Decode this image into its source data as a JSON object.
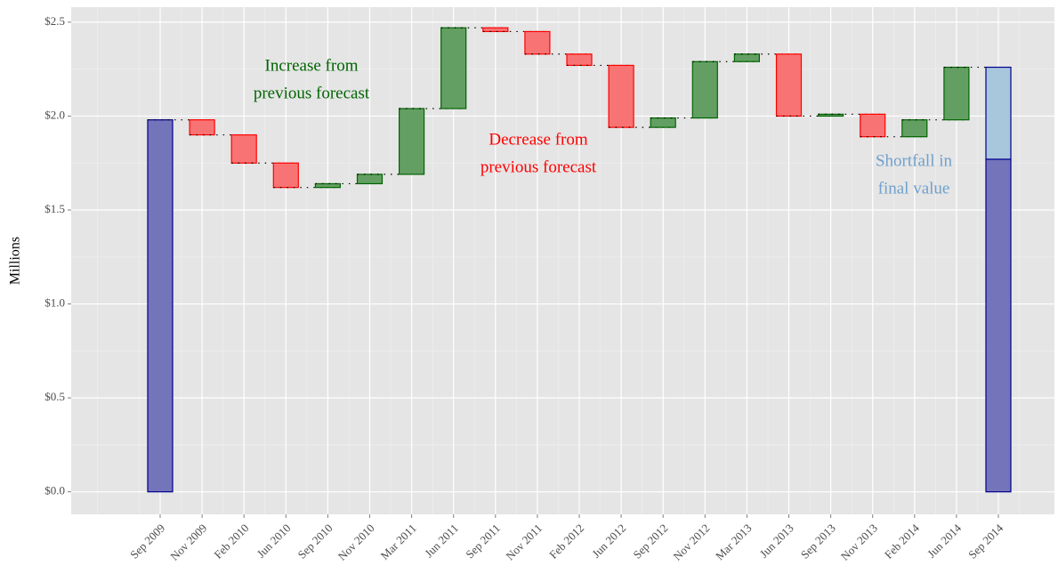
{
  "chart_data": {
    "type": "waterfall",
    "y_label": "Millions",
    "categories": [
      "Sep 2009",
      "Nov 2009",
      "Feb 2010",
      "Jun 2010",
      "Sep 2010",
      "Nov 2010",
      "Mar 2011",
      "Jun 2011",
      "Sep 2011",
      "Nov 2011",
      "Feb 2012",
      "Jun 2012",
      "Sep 2012",
      "Nov 2012",
      "Mar 2013",
      "Jun 2013",
      "Sep 2013",
      "Nov 2013",
      "Feb 2014",
      "Jun 2014",
      "Sep 2014"
    ],
    "values": [
      1.98,
      -0.08,
      -0.15,
      -0.13,
      0.02,
      0.05,
      0.35,
      0.43,
      -0.02,
      -0.12,
      -0.06,
      -0.33,
      0.05,
      0.3,
      0.04,
      -0.33,
      0.01,
      -0.12,
      0.09,
      0.28,
      1.77
    ],
    "ylim": [
      -0.12,
      2.58
    ],
    "yticks": [
      {
        "value": 0,
        "label": "$0.0"
      },
      {
        "value": 0.5,
        "label": "$0.5"
      },
      {
        "value": 1,
        "label": "$1.0"
      },
      {
        "value": 1.5,
        "label": "$1.5"
      },
      {
        "value": 2,
        "label": "$2.0"
      },
      {
        "value": 2.5,
        "label": "$2.5"
      }
    ],
    "grid": true,
    "colors": {
      "total": "#7474bb",
      "total_stroke": "#00008b",
      "increase": "#639f63",
      "increase_stroke": "#006400",
      "decrease": "#f87474",
      "decrease_stroke": "#ff0000",
      "shortfall": "#a8c6dc"
    },
    "annotations": [
      {
        "lines": [
          "Increase from",
          "previous forecast"
        ],
        "color": "#006400"
      },
      {
        "lines": [
          "Decrease from",
          "previous forecast"
        ],
        "color": "#ff0000"
      },
      {
        "lines": [
          "Shortfall in",
          "final value"
        ],
        "color": "#6fa0cc"
      }
    ]
  }
}
